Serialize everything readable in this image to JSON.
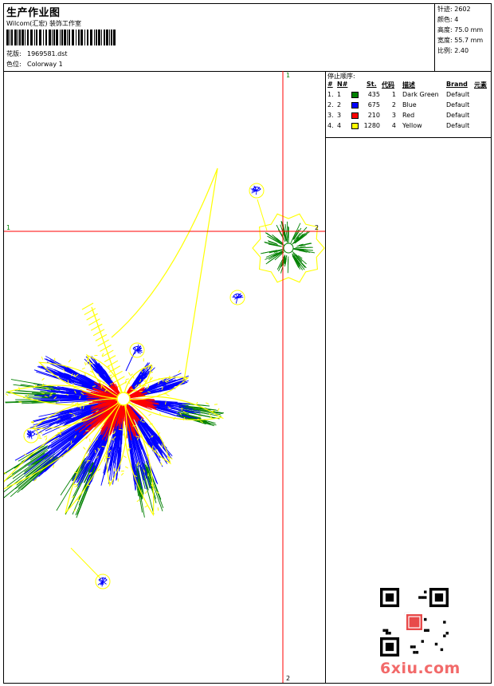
{
  "header": {
    "title": "生产作业图",
    "subtitle": "Wilcom(汇宏) 装饰工作室",
    "design_label": "花版:",
    "design_value": "1969581.dst",
    "colorway_label": "色位:",
    "colorway_value": "Colorway 1"
  },
  "stats": [
    {
      "label": "针迹:",
      "value": "2602"
    },
    {
      "label": "颜色:",
      "value": "4"
    },
    {
      "label": "高度:",
      "value": "75.0 mm"
    },
    {
      "label": "宽度:",
      "value": "55.7 mm"
    },
    {
      "label": "比例:",
      "value": "2.40"
    }
  ],
  "stop_sequence": {
    "heading": "停止顺序:",
    "columns": [
      "#",
      "N#",
      "St.",
      "代码",
      "描述",
      "Brand",
      "元素"
    ],
    "rows": [
      {
        "idx": "1.",
        "n": "1",
        "color": "#008000",
        "st": "435",
        "code": "1",
        "desc": "Dark Green",
        "brand": "Default"
      },
      {
        "idx": "2.",
        "n": "2",
        "color": "#0000ff",
        "st": "675",
        "code": "2",
        "desc": "Blue",
        "brand": "Default"
      },
      {
        "idx": "3.",
        "n": "3",
        "color": "#ff0000",
        "st": "210",
        "code": "3",
        "desc": "Red",
        "brand": "Default"
      },
      {
        "idx": "4.",
        "n": "4",
        "color": "#ffff00",
        "st": "1280",
        "code": "4",
        "desc": "Yellow",
        "brand": "Default"
      }
    ]
  },
  "axes": {
    "v_top": "1",
    "v_bottom": "2",
    "h_left": "1",
    "h_right": "2"
  },
  "colors": {
    "axis_vertical": "#ff0000",
    "axis_horizontal": "#ff0000",
    "axis_label_green": "#008000"
  },
  "watermark": "6xiu.com"
}
